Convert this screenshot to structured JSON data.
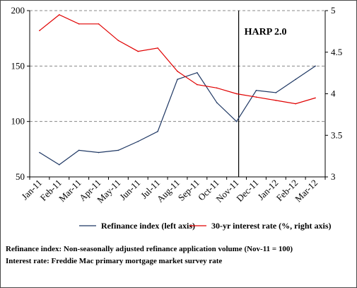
{
  "chart_data": {
    "type": "line",
    "categories": [
      "Jan-11",
      "Feb-11",
      "Mar-11",
      "Apr-11",
      "May-11",
      "Jun-11",
      "Jul-11",
      "Aug-11",
      "Sep-11",
      "Oct-11",
      "Nov-11",
      "Dec-11",
      "Jan-12",
      "Feb-12",
      "Mar-12"
    ],
    "left_axis": {
      "ylim": [
        50,
        200
      ],
      "ticks": [
        "50",
        "100",
        "150",
        "200"
      ]
    },
    "right_axis": {
      "ylim": [
        3,
        5
      ],
      "ticks": [
        "3",
        "3.5",
        "4",
        "4.5",
        "5"
      ]
    },
    "grid": "dashed horizontal at left-axis ticks",
    "legend_position": "bottom",
    "series": [
      {
        "name": "Refinance index (left axis)",
        "axis": "left",
        "color": "#1f3864",
        "values": [
          72,
          61,
          74,
          72,
          74,
          82,
          91,
          138,
          144,
          117,
          100,
          128,
          126,
          138,
          150
        ]
      },
      {
        "name": "30-yr interest rate (%, right axis)",
        "axis": "right",
        "color": "#e00000",
        "values": [
          4.76,
          4.95,
          4.84,
          4.84,
          4.64,
          4.51,
          4.55,
          4.27,
          4.11,
          4.07,
          4.0,
          3.96,
          3.92,
          3.88,
          3.95
        ]
      }
    ],
    "annotation": {
      "label": "HARP 2.0",
      "at_category": "Nov-11"
    }
  },
  "notes": {
    "line1": "Refinance index: Non-seasonally adjusted refinance application volume (Nov-11 = 100)",
    "line2": "Interest rate: Freddie Mac primary mortgage market survey rate"
  },
  "colors": {
    "refinance": "#1f3864",
    "rate": "#e00000",
    "grid": "#888888",
    "axis": "#000000"
  }
}
